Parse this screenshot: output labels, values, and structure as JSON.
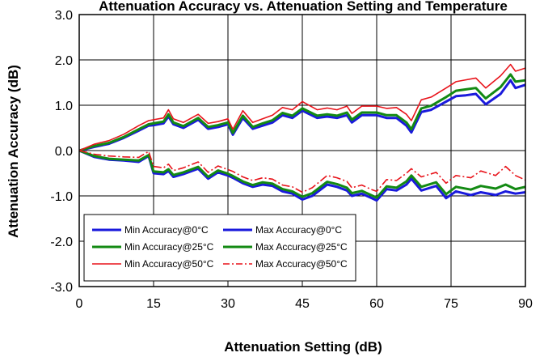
{
  "chart_data": {
    "type": "line",
    "title": "Attenuation Accuracy vs. Attenuation Setting and Temperature",
    "xlabel": "Attenuation Setting (dB)",
    "ylabel": "Attenuation Accuracy (dB)",
    "xlim": [
      0,
      90
    ],
    "ylim": [
      -3,
      3
    ],
    "xticks": [
      0,
      15,
      30,
      45,
      60,
      75,
      90
    ],
    "yticks": [
      -3,
      -2,
      -1,
      0,
      1,
      2,
      3
    ],
    "ytick_labels": [
      "-3.0",
      "-2.0",
      "-1.0",
      "0.0",
      "1.0",
      "2.0",
      "3.0"
    ],
    "grid": true,
    "legend_position": "bottom-left",
    "colors": {
      "t0": "#1a1adc",
      "t25": "#138a13",
      "t50": "#e8141b"
    },
    "series": [
      {
        "name": "Min Accuracy@0°C",
        "color": "#1a1adc",
        "dash": "solid",
        "x": [
          0,
          3,
          6,
          9,
          12,
          14,
          15,
          17,
          18,
          19,
          21,
          24,
          26,
          28,
          30,
          31,
          33,
          35,
          37,
          39,
          41,
          43,
          45,
          48,
          50,
          52,
          54,
          55,
          57,
          60,
          62,
          64,
          66,
          67,
          69,
          71,
          74,
          76,
          78,
          80,
          82,
          85,
          87,
          88,
          90
        ],
        "y": [
          0.0,
          0.08,
          0.15,
          0.28,
          0.44,
          0.55,
          0.56,
          0.6,
          0.75,
          0.58,
          0.5,
          0.68,
          0.48,
          0.52,
          0.58,
          0.35,
          0.72,
          0.48,
          0.55,
          0.62,
          0.78,
          0.72,
          0.88,
          0.72,
          0.75,
          0.72,
          0.78,
          0.62,
          0.78,
          0.78,
          0.72,
          0.72,
          0.55,
          0.4,
          0.85,
          0.9,
          1.08,
          1.2,
          1.22,
          1.25,
          1.02,
          1.25,
          1.55,
          1.38,
          1.45
        ]
      },
      {
        "name": "Max Accuracy@0°C",
        "color": "#1a1adc",
        "dash": "solid",
        "x": [
          0,
          3,
          6,
          9,
          12,
          14,
          15,
          17,
          18,
          19,
          21,
          24,
          26,
          28,
          30,
          31,
          33,
          35,
          37,
          39,
          41,
          43,
          45,
          47,
          50,
          52,
          54,
          55,
          57,
          59,
          60,
          62,
          64,
          66,
          67,
          69,
          72,
          74,
          76,
          79,
          81,
          84,
          86,
          88,
          90
        ],
        "y": [
          0.0,
          -0.14,
          -0.2,
          -0.22,
          -0.25,
          -0.12,
          -0.5,
          -0.52,
          -0.45,
          -0.58,
          -0.52,
          -0.4,
          -0.62,
          -0.48,
          -0.55,
          -0.6,
          -0.72,
          -0.8,
          -0.75,
          -0.78,
          -0.9,
          -0.95,
          -1.08,
          -1.0,
          -0.75,
          -0.8,
          -0.88,
          -1.0,
          -0.95,
          -1.05,
          -1.1,
          -0.85,
          -0.88,
          -0.75,
          -0.62,
          -0.88,
          -0.78,
          -1.05,
          -0.9,
          -0.98,
          -0.92,
          -0.98,
          -0.9,
          -0.95,
          -0.92
        ]
      },
      {
        "name": "Min Accuracy@25°C",
        "color": "#138a13",
        "dash": "solid",
        "x": [
          0,
          3,
          6,
          9,
          12,
          14,
          15,
          17,
          18,
          19,
          21,
          24,
          26,
          28,
          30,
          31,
          33,
          35,
          37,
          39,
          41,
          43,
          45,
          48,
          50,
          52,
          54,
          55,
          57,
          60,
          62,
          64,
          66,
          67,
          69,
          71,
          74,
          76,
          78,
          80,
          82,
          85,
          87,
          88,
          90
        ],
        "y": [
          0.0,
          0.1,
          0.17,
          0.3,
          0.47,
          0.58,
          0.6,
          0.64,
          0.8,
          0.62,
          0.54,
          0.72,
          0.52,
          0.56,
          0.62,
          0.39,
          0.77,
          0.52,
          0.6,
          0.67,
          0.83,
          0.77,
          0.93,
          0.77,
          0.8,
          0.77,
          0.84,
          0.68,
          0.84,
          0.84,
          0.78,
          0.78,
          0.62,
          0.47,
          0.93,
          0.99,
          1.18,
          1.32,
          1.35,
          1.38,
          1.15,
          1.4,
          1.68,
          1.52,
          1.55
        ]
      },
      {
        "name": "Max Accuracy@25°C",
        "color": "#138a13",
        "dash": "solid",
        "x": [
          0,
          3,
          6,
          9,
          12,
          14,
          15,
          17,
          18,
          19,
          21,
          24,
          26,
          28,
          30,
          31,
          33,
          35,
          37,
          39,
          41,
          43,
          45,
          47,
          50,
          52,
          54,
          55,
          57,
          59,
          60,
          62,
          64,
          66,
          67,
          69,
          72,
          74,
          76,
          79,
          81,
          84,
          86,
          88,
          90
        ],
        "y": [
          0.0,
          -0.12,
          -0.18,
          -0.2,
          -0.22,
          -0.1,
          -0.46,
          -0.48,
          -0.41,
          -0.54,
          -0.48,
          -0.36,
          -0.58,
          -0.44,
          -0.51,
          -0.56,
          -0.68,
          -0.76,
          -0.7,
          -0.73,
          -0.85,
          -0.9,
          -1.02,
          -0.94,
          -0.69,
          -0.74,
          -0.82,
          -0.94,
          -0.89,
          -0.99,
          -1.04,
          -0.79,
          -0.82,
          -0.68,
          -0.55,
          -0.8,
          -0.7,
          -0.96,
          -0.8,
          -0.86,
          -0.78,
          -0.84,
          -0.75,
          -0.85,
          -0.8
        ]
      },
      {
        "name": "Min Accuracy@50°C",
        "color": "#e8141b",
        "dash": "solid",
        "x": [
          0,
          3,
          6,
          9,
          12,
          14,
          15,
          17,
          18,
          19,
          21,
          24,
          26,
          28,
          30,
          31,
          33,
          35,
          37,
          39,
          41,
          43,
          45,
          48,
          50,
          52,
          54,
          55,
          57,
          60,
          62,
          64,
          66,
          67,
          69,
          71,
          74,
          76,
          78,
          80,
          82,
          85,
          87,
          88,
          90
        ],
        "y": [
          0.0,
          0.14,
          0.22,
          0.36,
          0.55,
          0.66,
          0.68,
          0.72,
          0.9,
          0.7,
          0.62,
          0.8,
          0.6,
          0.64,
          0.7,
          0.47,
          0.88,
          0.62,
          0.7,
          0.78,
          0.95,
          0.9,
          1.08,
          0.9,
          0.94,
          0.9,
          0.98,
          0.82,
          0.98,
          0.98,
          0.93,
          0.95,
          0.8,
          0.66,
          1.12,
          1.18,
          1.38,
          1.52,
          1.56,
          1.6,
          1.38,
          1.65,
          1.9,
          1.75,
          1.82
        ]
      },
      {
        "name": "Max Accuracy@50°C",
        "color": "#e8141b",
        "dash": "dashdot",
        "x": [
          0,
          3,
          6,
          9,
          12,
          14,
          15,
          17,
          18,
          19,
          21,
          24,
          26,
          28,
          30,
          31,
          33,
          35,
          37,
          39,
          41,
          43,
          45,
          47,
          50,
          52,
          54,
          55,
          57,
          59,
          60,
          62,
          64,
          66,
          67,
          69,
          72,
          74,
          76,
          79,
          81,
          84,
          86,
          88,
          90
        ],
        "y": [
          0.0,
          -0.08,
          -0.12,
          -0.14,
          -0.15,
          -0.02,
          -0.35,
          -0.38,
          -0.3,
          -0.44,
          -0.38,
          -0.25,
          -0.48,
          -0.34,
          -0.42,
          -0.46,
          -0.58,
          -0.66,
          -0.6,
          -0.63,
          -0.76,
          -0.8,
          -0.92,
          -0.82,
          -0.55,
          -0.6,
          -0.68,
          -0.82,
          -0.76,
          -0.86,
          -0.9,
          -0.64,
          -0.66,
          -0.5,
          -0.4,
          -0.58,
          -0.48,
          -0.72,
          -0.55,
          -0.6,
          -0.45,
          -0.55,
          -0.35,
          -0.55,
          -0.65
        ]
      }
    ]
  }
}
